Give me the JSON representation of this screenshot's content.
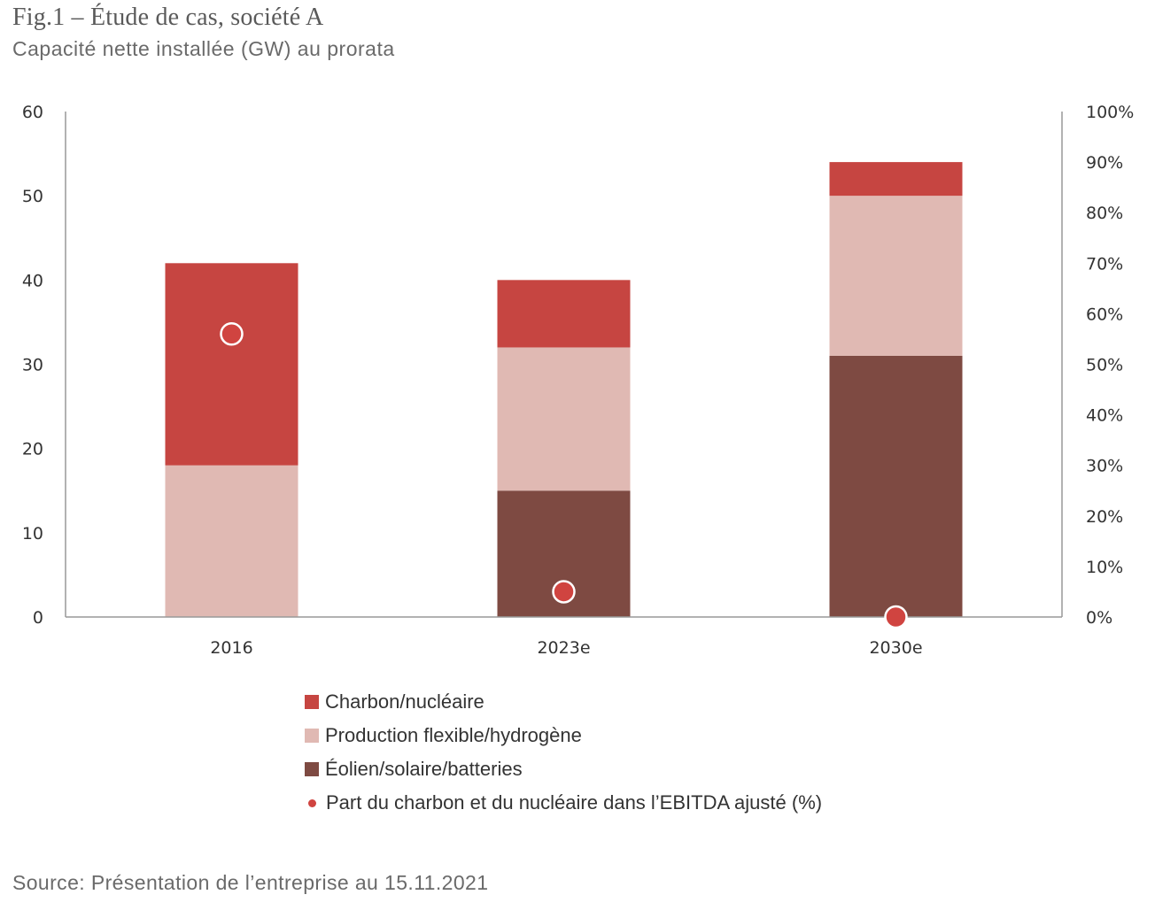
{
  "title": "Fig.1 – Étude de cas, société A",
  "subtitle": "Capacité nette installée (GW) au prorata",
  "source": "Source: Présentation de l’entreprise au 15.11.2021",
  "colors": {
    "charbon": "#c64541",
    "flexible": "#e0b9b3",
    "eolien": "#7e4a42",
    "point": "#d04440",
    "axis": "#999999"
  },
  "chart_data": {
    "type": "bar",
    "stacked": true,
    "categories": [
      "2016",
      "2023e",
      "2030e"
    ],
    "series": [
      {
        "name": "Éolien/solaire/batteries",
        "values": [
          0,
          15,
          31
        ],
        "color": "#7e4a42"
      },
      {
        "name": "Production flexible/hydrogène",
        "values": [
          18,
          17,
          19
        ],
        "color": "#e0b9b3"
      },
      {
        "name": "Charbon/nucléaire",
        "values": [
          24,
          8,
          4
        ],
        "color": "#c64541"
      }
    ],
    "secondary_series": {
      "name": "Part du charbon et du nucléaire dans l’EBITDA ajusté (%)",
      "type": "scatter",
      "values": [
        56,
        5,
        0
      ],
      "color": "#d04440"
    },
    "ylim": [
      0,
      60
    ],
    "yticks": [
      "0",
      "10",
      "20",
      "30",
      "40",
      "50",
      "60"
    ],
    "y2lim": [
      0,
      100
    ],
    "y2ticks": [
      "0%",
      "10%",
      "20%",
      "30%",
      "40%",
      "50%",
      "60%",
      "70%",
      "80%",
      "90%",
      "100%"
    ],
    "grid": false,
    "legend_position": "bottom"
  },
  "legend": [
    {
      "label": "Charbon/nucléaire",
      "kind": "square",
      "color": "#c64541"
    },
    {
      "label": "Production flexible/hydrogène",
      "kind": "square",
      "color": "#e0b9b3"
    },
    {
      "label": "Éolien/solaire/batteries",
      "kind": "square",
      "color": "#7e4a42"
    },
    {
      "label": "Part du charbon et du nucléaire dans l’EBITDA ajusté (%)",
      "kind": "dot",
      "color": "#d04440"
    }
  ]
}
